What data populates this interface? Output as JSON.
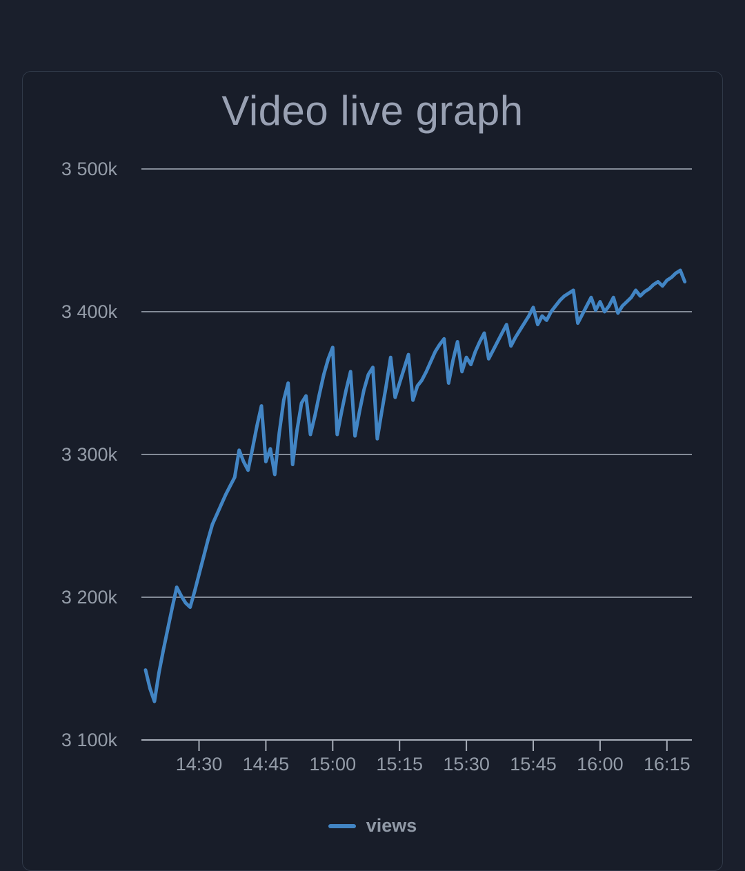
{
  "page": {
    "title": "Video live graph"
  },
  "colors": {
    "page_bg": "#1a1f2c",
    "card_bg": "#181d29",
    "card_border": "#303948",
    "title_text": "#99a1b3",
    "axis_text": "#949ca8",
    "gridline": "#848b97",
    "axis_line": "#a7adb8",
    "series_line": "#4285c4",
    "legend_text": "#9099a6"
  },
  "chart_data": {
    "type": "line",
    "title": "Video live graph",
    "xlabel": "",
    "ylabel": "",
    "grid": "horizontal",
    "ylim_thousands": [
      3100,
      3500
    ],
    "y_axis": {
      "ticks": [
        {
          "label": "3 500k",
          "value": 3500
        },
        {
          "label": "3 400k",
          "value": 3400
        },
        {
          "label": "3 300k",
          "value": 3300
        },
        {
          "label": "3 200k",
          "value": 3200
        },
        {
          "label": "3 100k",
          "value": 3100
        }
      ]
    },
    "x_axis": {
      "start_time": "14:18",
      "interval_minutes": 1,
      "ticks": [
        {
          "label": "14:30",
          "minute_offset": 12
        },
        {
          "label": "14:45",
          "minute_offset": 27
        },
        {
          "label": "15:00",
          "minute_offset": 42
        },
        {
          "label": "15:15",
          "minute_offset": 57
        },
        {
          "label": "15:30",
          "minute_offset": 72
        },
        {
          "label": "15:45",
          "minute_offset": 87
        },
        {
          "label": "16:00",
          "minute_offset": 102
        },
        {
          "label": "16:15",
          "minute_offset": 117
        }
      ]
    },
    "legend": {
      "position": "bottom",
      "entries": [
        {
          "label": "views",
          "color": "#4285c4"
        }
      ]
    },
    "series": [
      {
        "name": "views",
        "color": "#4285c4",
        "unit": "thousands_of_views",
        "start_time": "14:18",
        "interval_minutes": 1,
        "values_thousands": [
          3149,
          3136,
          3127,
          3147,
          3163,
          3178,
          3193,
          3207,
          3201,
          3196,
          3193,
          3204,
          3216,
          3228,
          3240,
          3251,
          3258,
          3265,
          3272,
          3278,
          3284,
          3303,
          3295,
          3289,
          3304,
          3320,
          3334,
          3295,
          3304,
          3286,
          3315,
          3338,
          3350,
          3293,
          3317,
          3336,
          3341,
          3314,
          3327,
          3342,
          3356,
          3367,
          3375,
          3314,
          3330,
          3345,
          3358,
          3313,
          3330,
          3345,
          3356,
          3361,
          3311,
          3330,
          3348,
          3368,
          3340,
          3350,
          3360,
          3370,
          3338,
          3348,
          3352,
          3358,
          3365,
          3372,
          3377,
          3381,
          3350,
          3366,
          3379,
          3358,
          3368,
          3363,
          3372,
          3379,
          3385,
          3367,
          3373,
          3379,
          3385,
          3391,
          3376,
          3382,
          3387,
          3392,
          3397,
          3403,
          3391,
          3397,
          3394,
          3400,
          3404,
          3408,
          3411,
          3413,
          3415,
          3392,
          3398,
          3404,
          3410,
          3401,
          3407,
          3400,
          3404,
          3410,
          3399,
          3404,
          3407,
          3410,
          3415,
          3411,
          3414,
          3416,
          3419,
          3421,
          3418,
          3422,
          3424,
          3427,
          3429,
          3421
        ]
      }
    ]
  }
}
